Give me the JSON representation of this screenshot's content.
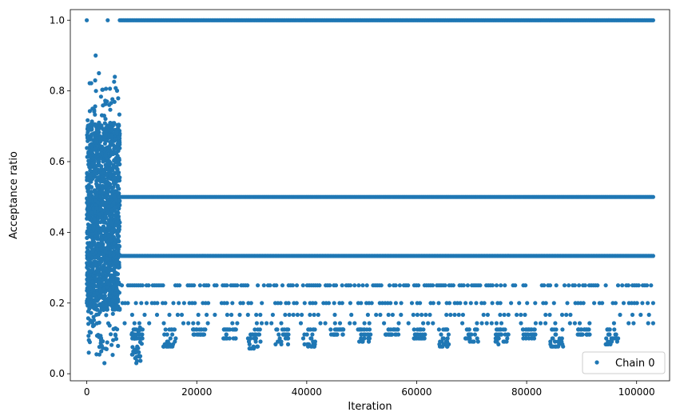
{
  "chart_data": {
    "type": "scatter",
    "xlabel": "Iteration",
    "ylabel": "Acceptance ratio",
    "xlim": [
      -3000,
      106000
    ],
    "ylim": [
      -0.02,
      1.03
    ],
    "xticks": [
      0,
      20000,
      40000,
      60000,
      80000,
      100000
    ],
    "xtick_labels": [
      "0",
      "20000",
      "40000",
      "60000",
      "80000",
      "100000"
    ],
    "yticks": [
      0.0,
      0.2,
      0.4,
      0.6,
      0.8,
      1.0
    ],
    "ytick_labels": [
      "0.0",
      "0.2",
      "0.4",
      "0.6",
      "0.8",
      "1.0"
    ],
    "grid": false,
    "legend_position": "lower-right",
    "marker_color": "#1f77b4",
    "series": [
      {
        "name": "Chain 0",
        "x_range": [
          0,
          103000
        ],
        "burn_in_end": 6000,
        "bands": [
          {
            "y": 1.0,
            "x_start": 6000,
            "x_end": 103000
          },
          {
            "y": 0.5,
            "x_start": 6000,
            "x_end": 103000
          },
          {
            "y": 0.3333,
            "x_start": 6000,
            "x_end": 103000
          },
          {
            "y": 0.25,
            "x_start": 6000,
            "x_end": 103000
          },
          {
            "y": 0.2,
            "x_start": 6000,
            "x_end": 103000
          },
          {
            "y": 0.1667,
            "x_start": 6000,
            "x_end": 103000
          },
          {
            "y": 0.1429,
            "x_start": 6000,
            "x_end": 103000
          }
        ],
        "outliers": [
          [
            0,
            1.0
          ],
          [
            3800,
            1.0
          ],
          [
            1600,
            0.9
          ],
          [
            2200,
            0.85
          ],
          [
            5100,
            0.84
          ],
          [
            3200,
            0.03
          ],
          [
            9000,
            0.03
          ]
        ]
      }
    ]
  }
}
